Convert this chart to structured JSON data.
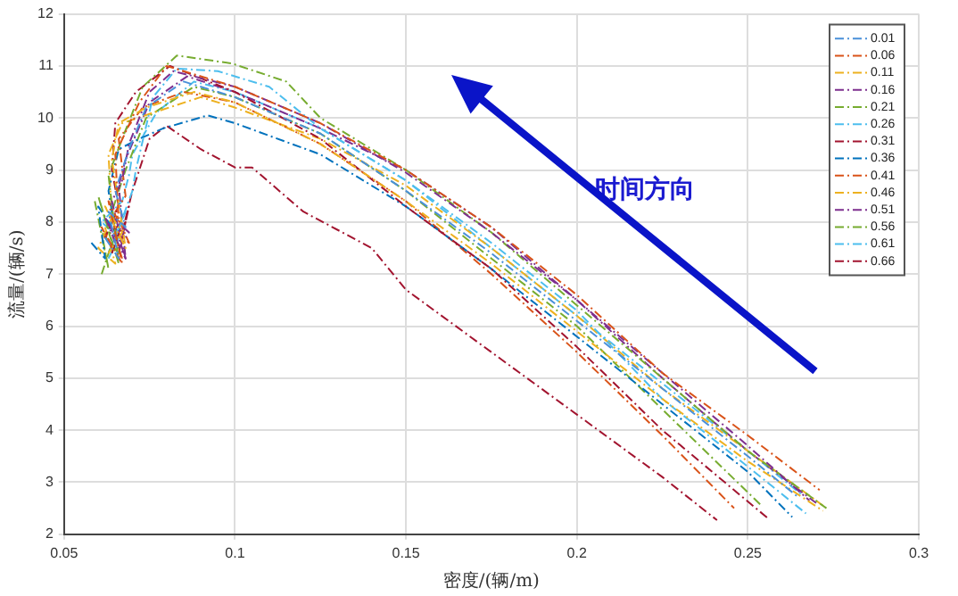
{
  "chart_data": {
    "type": "line",
    "xlabel": "密度/(辆/m)",
    "ylabel": "流量/(辆/s)",
    "xlim": [
      0.05,
      0.3
    ],
    "xticks": [
      0.05,
      0.1,
      0.15,
      0.2,
      0.25,
      0.3
    ],
    "ylim": [
      2,
      12
    ],
    "yticks": [
      2,
      3,
      4,
      5,
      6,
      7,
      8,
      9,
      10,
      11,
      12
    ],
    "grid": true,
    "legend": "top right",
    "marker": "none",
    "line_style": "dashed",
    "annotations": [
      "时间方向"
    ],
    "series": [
      {
        "name": "0.01",
        "color": "#4a90d9",
        "x": [
          0.062,
          0.066,
          0.063,
          0.068,
          0.065,
          0.069,
          0.074,
          0.085,
          0.1,
          0.125,
          0.15,
          0.175,
          0.2,
          0.225,
          0.25,
          0.265
        ],
        "values": [
          7.7,
          7.3,
          8.2,
          7.9,
          8.6,
          9.4,
          10.2,
          10.7,
          10.4,
          9.7,
          8.6,
          7.4,
          6.1,
          4.8,
          3.5,
          2.7
        ]
      },
      {
        "name": "0.06",
        "color": "#d95319",
        "x": [
          0.064,
          0.061,
          0.067,
          0.063,
          0.066,
          0.065,
          0.072,
          0.08,
          0.1,
          0.125,
          0.15,
          0.175,
          0.2,
          0.225,
          0.25,
          0.271
        ],
        "values": [
          7.5,
          7.9,
          7.2,
          8.4,
          8.0,
          9.3,
          10.3,
          11.0,
          10.6,
          9.9,
          9.0,
          7.9,
          6.6,
          5.1,
          3.9,
          2.85
        ]
      },
      {
        "name": "0.11",
        "color": "#edb120",
        "x": [
          0.063,
          0.067,
          0.062,
          0.068,
          0.064,
          0.066,
          0.074,
          0.088,
          0.1,
          0.125,
          0.15,
          0.175,
          0.2,
          0.225,
          0.25,
          0.272
        ],
        "values": [
          7.4,
          7.8,
          8.3,
          7.5,
          9.2,
          9.9,
          10.2,
          10.5,
          10.3,
          9.5,
          8.4,
          7.2,
          5.9,
          4.6,
          3.4,
          2.45
        ]
      },
      {
        "name": "0.16",
        "color": "#7e2f8e",
        "x": [
          0.065,
          0.062,
          0.068,
          0.064,
          0.067,
          0.069,
          0.075,
          0.082,
          0.1,
          0.125,
          0.15,
          0.175,
          0.2,
          0.225,
          0.25,
          0.268
        ],
        "values": [
          7.6,
          8.1,
          7.3,
          8.4,
          8.8,
          9.5,
          10.5,
          10.9,
          10.6,
          9.9,
          8.95,
          7.8,
          6.5,
          5.1,
          3.7,
          2.65
        ]
      },
      {
        "name": "0.21",
        "color": "#77ac30",
        "x": [
          0.061,
          0.064,
          0.06,
          0.066,
          0.063,
          0.067,
          0.073,
          0.083,
          0.099,
          0.115,
          0.125,
          0.15,
          0.175,
          0.2,
          0.225,
          0.25,
          0.273
        ],
        "values": [
          7.0,
          7.6,
          8.5,
          7.2,
          8.9,
          9.6,
          10.6,
          11.2,
          11.05,
          10.7,
          10.0,
          9.0,
          7.8,
          6.4,
          5.0,
          3.6,
          2.5
        ]
      },
      {
        "name": "0.26",
        "color": "#4dbeee",
        "x": [
          0.066,
          0.063,
          0.068,
          0.065,
          0.07,
          0.071,
          0.076,
          0.083,
          0.095,
          0.11,
          0.125,
          0.15,
          0.175,
          0.2,
          0.225,
          0.25,
          0.267
        ],
        "values": [
          7.9,
          7.4,
          8.2,
          7.7,
          8.6,
          9.0,
          10.4,
          10.95,
          10.9,
          10.6,
          9.8,
          8.8,
          7.6,
          6.3,
          4.6,
          3.3,
          2.4
        ]
      },
      {
        "name": "0.31",
        "color": "#a2142f",
        "x": [
          0.064,
          0.067,
          0.062,
          0.066,
          0.064,
          0.065,
          0.071,
          0.081,
          0.1,
          0.125,
          0.15,
          0.175,
          0.2,
          0.225,
          0.256
        ],
        "values": [
          7.4,
          8.0,
          7.7,
          8.3,
          9.0,
          9.9,
          10.5,
          11.0,
          10.5,
          9.6,
          8.3,
          7.1,
          5.6,
          4.0,
          2.3
        ]
      },
      {
        "name": "0.36",
        "color": "#0072bd",
        "x": [
          0.058,
          0.062,
          0.06,
          0.065,
          0.063,
          0.066,
          0.072,
          0.079,
          0.092,
          0.1,
          0.125,
          0.15,
          0.175,
          0.2,
          0.225,
          0.25,
          0.263
        ],
        "values": [
          7.6,
          7.3,
          8.3,
          7.8,
          8.6,
          9.4,
          9.6,
          9.8,
          10.05,
          9.9,
          9.3,
          8.3,
          7.1,
          5.8,
          4.5,
          3.2,
          2.33
        ]
      },
      {
        "name": "0.41",
        "color": "#d95319",
        "x": [
          0.067,
          0.064,
          0.069,
          0.065,
          0.068,
          0.066,
          0.073,
          0.085,
          0.1,
          0.125,
          0.15,
          0.175,
          0.2,
          0.225,
          0.246
        ],
        "values": [
          7.3,
          7.9,
          7.6,
          8.2,
          8.5,
          9.6,
          10.2,
          10.5,
          10.3,
          9.5,
          8.4,
          7.0,
          5.5,
          3.9,
          2.5
        ]
      },
      {
        "name": "0.46",
        "color": "#edb120",
        "x": [
          0.062,
          0.065,
          0.06,
          0.064,
          0.063,
          0.067,
          0.076,
          0.09,
          0.1,
          0.125,
          0.15,
          0.175,
          0.2,
          0.225,
          0.25,
          0.272
        ],
        "values": [
          7.9,
          7.2,
          7.5,
          8.1,
          9.3,
          9.9,
          10.1,
          10.4,
          10.2,
          9.6,
          8.7,
          7.5,
          6.2,
          4.8,
          3.6,
          2.55
        ]
      },
      {
        "name": "0.51",
        "color": "#7e2f8e",
        "x": [
          0.066,
          0.069,
          0.064,
          0.068,
          0.066,
          0.068,
          0.075,
          0.086,
          0.1,
          0.125,
          0.15,
          0.175,
          0.2,
          0.225,
          0.25,
          0.27
        ],
        "values": [
          7.5,
          7.8,
          8.1,
          7.3,
          8.7,
          9.2,
          10.3,
          10.8,
          10.5,
          9.8,
          9.0,
          7.9,
          6.5,
          5.0,
          3.6,
          2.6
        ]
      },
      {
        "name": "0.56",
        "color": "#77ac30",
        "x": [
          0.059,
          0.063,
          0.061,
          0.066,
          0.064,
          0.068,
          0.074,
          0.088,
          0.1,
          0.125,
          0.15,
          0.175,
          0.2,
          0.225,
          0.254
        ],
        "values": [
          8.4,
          7.1,
          7.8,
          7.4,
          8.2,
          9.0,
          10.0,
          10.6,
          10.4,
          9.7,
          8.6,
          7.3,
          6.0,
          4.4,
          2.55
        ]
      },
      {
        "name": "0.61",
        "color": "#4dbeee",
        "x": [
          0.063,
          0.066,
          0.061,
          0.067,
          0.069,
          0.07,
          0.077,
          0.088,
          0.1,
          0.125,
          0.15,
          0.175,
          0.2,
          0.225,
          0.25,
          0.266
        ],
        "values": [
          7.3,
          7.7,
          8.0,
          8.4,
          8.9,
          9.3,
          10.1,
          10.7,
          10.5,
          9.8,
          8.8,
          7.5,
          6.2,
          4.9,
          3.6,
          2.75
        ]
      },
      {
        "name": "0.66",
        "color": "#a2142f",
        "x": [
          0.065,
          0.068,
          0.066,
          0.069,
          0.067,
          0.07,
          0.075,
          0.08,
          0.09,
          0.1,
          0.105,
          0.12,
          0.14,
          0.15,
          0.175,
          0.2,
          0.225,
          0.241
        ],
        "values": [
          7.6,
          8.0,
          7.4,
          8.3,
          7.8,
          8.6,
          9.6,
          9.85,
          9.4,
          9.05,
          9.05,
          8.2,
          7.5,
          6.7,
          5.5,
          4.3,
          3.1,
          2.27
        ]
      }
    ]
  }
}
